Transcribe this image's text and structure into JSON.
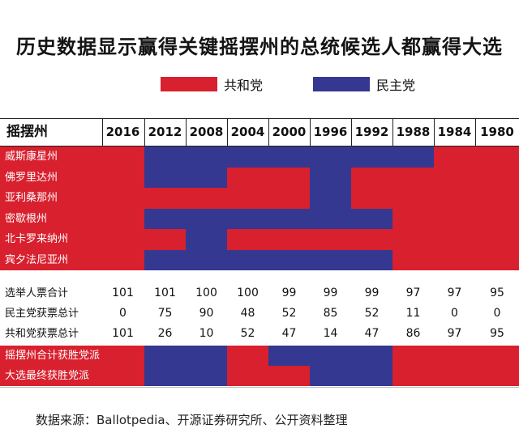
{
  "title": "历史数据显示赢得关键摇摆州的总统候选人都赢得大选",
  "legend": [
    {
      "label": "共和党",
      "color": "#d8202e"
    },
    {
      "label": "民主党",
      "color": "#343891"
    }
  ],
  "colors": {
    "R": "#d8202e",
    "D": "#343891"
  },
  "chart_data": {
    "type": "table",
    "header_label": "摇摆州",
    "years": [
      "2016",
      "2012",
      "2008",
      "2004",
      "2000",
      "1996",
      "1992",
      "1988",
      "1984",
      "1980"
    ],
    "states": [
      {
        "name": "威斯康星州",
        "winners": [
          "R",
          "D",
          "D",
          "D",
          "D",
          "D",
          "D",
          "D",
          "R",
          "R"
        ]
      },
      {
        "name": "佛罗里达州",
        "winners": [
          "R",
          "D",
          "D",
          "R",
          "R",
          "D",
          "R",
          "R",
          "R",
          "R"
        ]
      },
      {
        "name": "亚利桑那州",
        "winners": [
          "R",
          "R",
          "R",
          "R",
          "R",
          "D",
          "R",
          "R",
          "R",
          "R"
        ]
      },
      {
        "name": "密歇根州",
        "winners": [
          "R",
          "D",
          "D",
          "D",
          "D",
          "D",
          "D",
          "R",
          "R",
          "R"
        ]
      },
      {
        "name": "北卡罗来纳州",
        "winners": [
          "R",
          "R",
          "D",
          "R",
          "R",
          "R",
          "R",
          "R",
          "R",
          "R"
        ]
      },
      {
        "name": "宾夕法尼亚州",
        "winners": [
          "R",
          "D",
          "D",
          "D",
          "D",
          "D",
          "D",
          "R",
          "R",
          "R"
        ]
      }
    ],
    "totals": [
      {
        "name": "选举人票合计",
        "values": [
          "101",
          "101",
          "100",
          "100",
          "99",
          "99",
          "99",
          "97",
          "97",
          "95"
        ]
      },
      {
        "name": "民主党获票总计",
        "values": [
          "0",
          "75",
          "90",
          "48",
          "52",
          "85",
          "52",
          "11",
          "0",
          "0"
        ]
      },
      {
        "name": "共和党获票总计",
        "values": [
          "101",
          "26",
          "10",
          "52",
          "47",
          "14",
          "47",
          "86",
          "97",
          "95"
        ]
      }
    ],
    "summary": [
      {
        "name": "摇摆州合计获胜党派",
        "winners": [
          "R",
          "D",
          "D",
          "R",
          "D",
          "D",
          "D",
          "R",
          "R",
          "R"
        ]
      },
      {
        "name": "大选最终获胜党派",
        "winners": [
          "R",
          "D",
          "D",
          "R",
          "R",
          "D",
          "D",
          "R",
          "R",
          "R"
        ]
      }
    ]
  },
  "source": "数据来源：Ballotpedia、开源证券研究所、公开资料整理"
}
